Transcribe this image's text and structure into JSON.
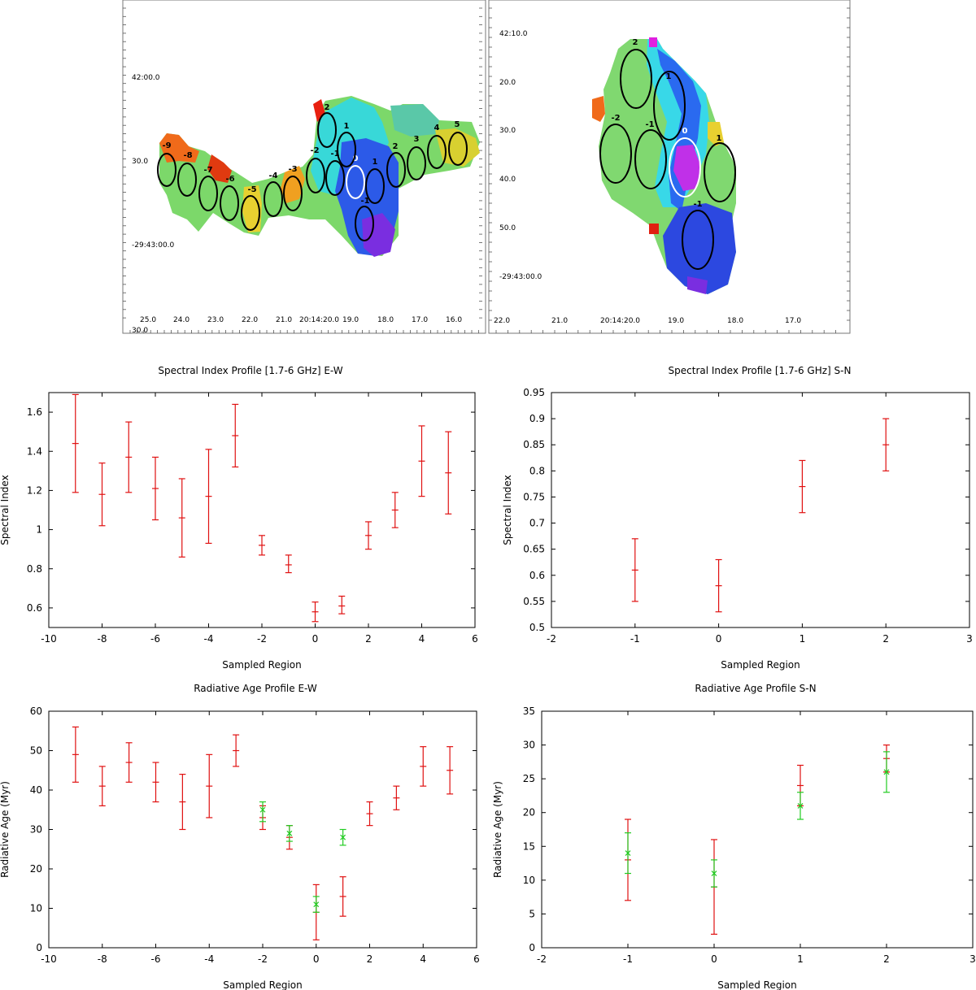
{
  "maps": [
    {
      "id": "map-ew",
      "dec_labels": [
        "42:00.0",
        "30.0",
        "-29:43:00.0"
      ],
      "ra_labels": [
        "25.0",
        "24.0",
        "23.0",
        "22.0",
        "21.0",
        "20:14:20.0",
        "19.0",
        "18.0",
        "17.0",
        "16.0"
      ],
      "corner_label": "30.0",
      "region_labels": [
        "-9",
        "-8",
        "-7",
        "-6",
        "-5",
        "-4",
        "-3",
        "-2",
        "-1",
        "0",
        "1",
        "2",
        "3",
        "4",
        "5",
        "2",
        "1",
        "-1"
      ]
    },
    {
      "id": "map-sn",
      "dec_labels": [
        "42:10.0",
        "20.0",
        "30.0",
        "40.0",
        "50.0",
        "-29:43:00.0"
      ],
      "ra_labels": [
        "22.0",
        "21.0",
        "20:14:20.0",
        "19.0",
        "18.0",
        "17.0"
      ],
      "region_labels": [
        "2",
        "1",
        "-2",
        "-1",
        "0",
        "1",
        "-1"
      ]
    }
  ],
  "chart_data": [
    {
      "type": "scatter",
      "title": "Spectral Index Profile [1.7-6 GHz] E-W",
      "xlabel": "Sampled Region",
      "ylabel": "Spectral Index",
      "xlim": [
        -10,
        6
      ],
      "ylim": [
        0.5,
        1.7
      ],
      "xticks": [
        -10,
        -8,
        -6,
        -4,
        -2,
        0,
        2,
        4,
        6
      ],
      "xtick_labels": [
        "-10",
        "-8",
        "-6",
        "-4",
        "-2",
        "0",
        "2",
        "4",
        "6"
      ],
      "yticks": [
        0.6,
        0.8,
        1.0,
        1.2,
        1.4,
        1.6
      ],
      "ytick_labels": [
        "0.6",
        "0.8",
        "1",
        "1.2",
        "1.4",
        "1.6"
      ],
      "grid": false,
      "series": [
        {
          "color": "#e01010",
          "x": [
            -9,
            -8,
            -7,
            -6,
            -5,
            -4,
            -3,
            -2,
            -1,
            0,
            1,
            2,
            3,
            4,
            5
          ],
          "y": [
            1.44,
            1.18,
            1.37,
            1.21,
            1.06,
            1.17,
            1.48,
            0.92,
            0.82,
            0.58,
            0.61,
            0.97,
            1.1,
            1.35,
            1.29
          ],
          "low": [
            1.19,
            1.02,
            1.19,
            1.05,
            0.86,
            0.93,
            1.32,
            0.87,
            0.78,
            0.53,
            0.57,
            0.9,
            1.01,
            1.17,
            1.08
          ],
          "high": [
            1.69,
            1.34,
            1.55,
            1.37,
            1.26,
            1.41,
            1.64,
            0.97,
            0.87,
            0.63,
            0.66,
            1.04,
            1.19,
            1.53,
            1.5
          ]
        }
      ]
    },
    {
      "type": "scatter",
      "title": "Spectral Index Profile [1.7-6 GHz] S-N",
      "xlabel": "Sampled Region",
      "ylabel": "Spectral Index",
      "xlim": [
        -2,
        3
      ],
      "ylim": [
        0.5,
        0.95
      ],
      "xticks": [
        -2,
        -1,
        0,
        1,
        2,
        3
      ],
      "xtick_labels": [
        "-2",
        "-1",
        "0",
        "1",
        "2",
        "3"
      ],
      "yticks": [
        0.5,
        0.55,
        0.6,
        0.65,
        0.7,
        0.75,
        0.8,
        0.85,
        0.9,
        0.95
      ],
      "ytick_labels": [
        "0.5",
        "0.55",
        "0.6",
        "0.65",
        "0.7",
        "0.75",
        "0.8",
        "0.85",
        "0.9",
        "0.95"
      ],
      "grid": false,
      "series": [
        {
          "color": "#e01010",
          "x": [
            -1,
            0,
            1,
            2
          ],
          "y": [
            0.61,
            0.58,
            0.77,
            0.85
          ],
          "low": [
            0.55,
            0.53,
            0.72,
            0.8
          ],
          "high": [
            0.67,
            0.63,
            0.82,
            0.9
          ]
        }
      ]
    },
    {
      "type": "scatter",
      "title": "Radiative Age Profile E-W",
      "xlabel": "Sampled Region",
      "ylabel": "Radiative Age (Myr)",
      "xlim": [
        -10,
        6
      ],
      "ylim": [
        0,
        60
      ],
      "xticks": [
        -10,
        -8,
        -6,
        -4,
        -2,
        0,
        2,
        4,
        6
      ],
      "xtick_labels": [
        "-10",
        "-8",
        "-6",
        "-4",
        "-2",
        "0",
        "2",
        "4",
        "6"
      ],
      "yticks": [
        0,
        10,
        20,
        30,
        40,
        50,
        60
      ],
      "ytick_labels": [
        "0",
        "10",
        "20",
        "30",
        "40",
        "50",
        "60"
      ],
      "grid": false,
      "series": [
        {
          "color": "#e01010",
          "x": [
            -9,
            -8,
            -7,
            -6,
            -5,
            -4,
            -3,
            -2,
            -1,
            0,
            1,
            2,
            3,
            4,
            5
          ],
          "y": [
            49,
            41,
            47,
            42,
            37,
            41,
            50,
            33,
            28,
            9,
            13,
            34,
            38,
            46,
            45
          ],
          "low": [
            42,
            36,
            42,
            37,
            30,
            33,
            46,
            30,
            25,
            2,
            8,
            31,
            35,
            41,
            39
          ],
          "high": [
            56,
            46,
            52,
            47,
            44,
            49,
            54,
            36,
            31,
            16,
            18,
            37,
            41,
            51,
            51
          ]
        },
        {
          "color": "#22cc22",
          "marker": "x",
          "x": [
            -2,
            -1,
            0,
            1
          ],
          "y": [
            35,
            29,
            11,
            28
          ],
          "low": [
            32,
            27,
            9,
            26
          ],
          "high": [
            37,
            31,
            13,
            30
          ]
        }
      ]
    },
    {
      "type": "scatter",
      "title": "Radiative Age Profile S-N",
      "xlabel": "Sampled Region",
      "ylabel": "Radiative Age (Myr)",
      "xlim": [
        -2,
        3
      ],
      "ylim": [
        0,
        35
      ],
      "xticks": [
        -2,
        -1,
        0,
        1,
        2,
        3
      ],
      "xtick_labels": [
        "-2",
        "-1",
        "0",
        "1",
        "2",
        "3"
      ],
      "yticks": [
        0,
        5,
        10,
        15,
        20,
        25,
        30,
        35
      ],
      "ytick_labels": [
        "0",
        "5",
        "10",
        "15",
        "20",
        "25",
        "30",
        "35"
      ],
      "grid": false,
      "series": [
        {
          "color": "#e01010",
          "x": [
            -1,
            0,
            1,
            2
          ],
          "y": [
            13,
            9,
            24,
            28
          ],
          "low": [
            7,
            2,
            21,
            26
          ],
          "high": [
            19,
            16,
            27,
            30
          ]
        },
        {
          "color": "#22cc22",
          "marker": "x",
          "x": [
            -1,
            0,
            1,
            2
          ],
          "y": [
            14,
            11,
            21,
            26
          ],
          "low": [
            11,
            9,
            19,
            23
          ],
          "high": [
            17,
            13,
            23,
            29
          ]
        }
      ]
    }
  ]
}
